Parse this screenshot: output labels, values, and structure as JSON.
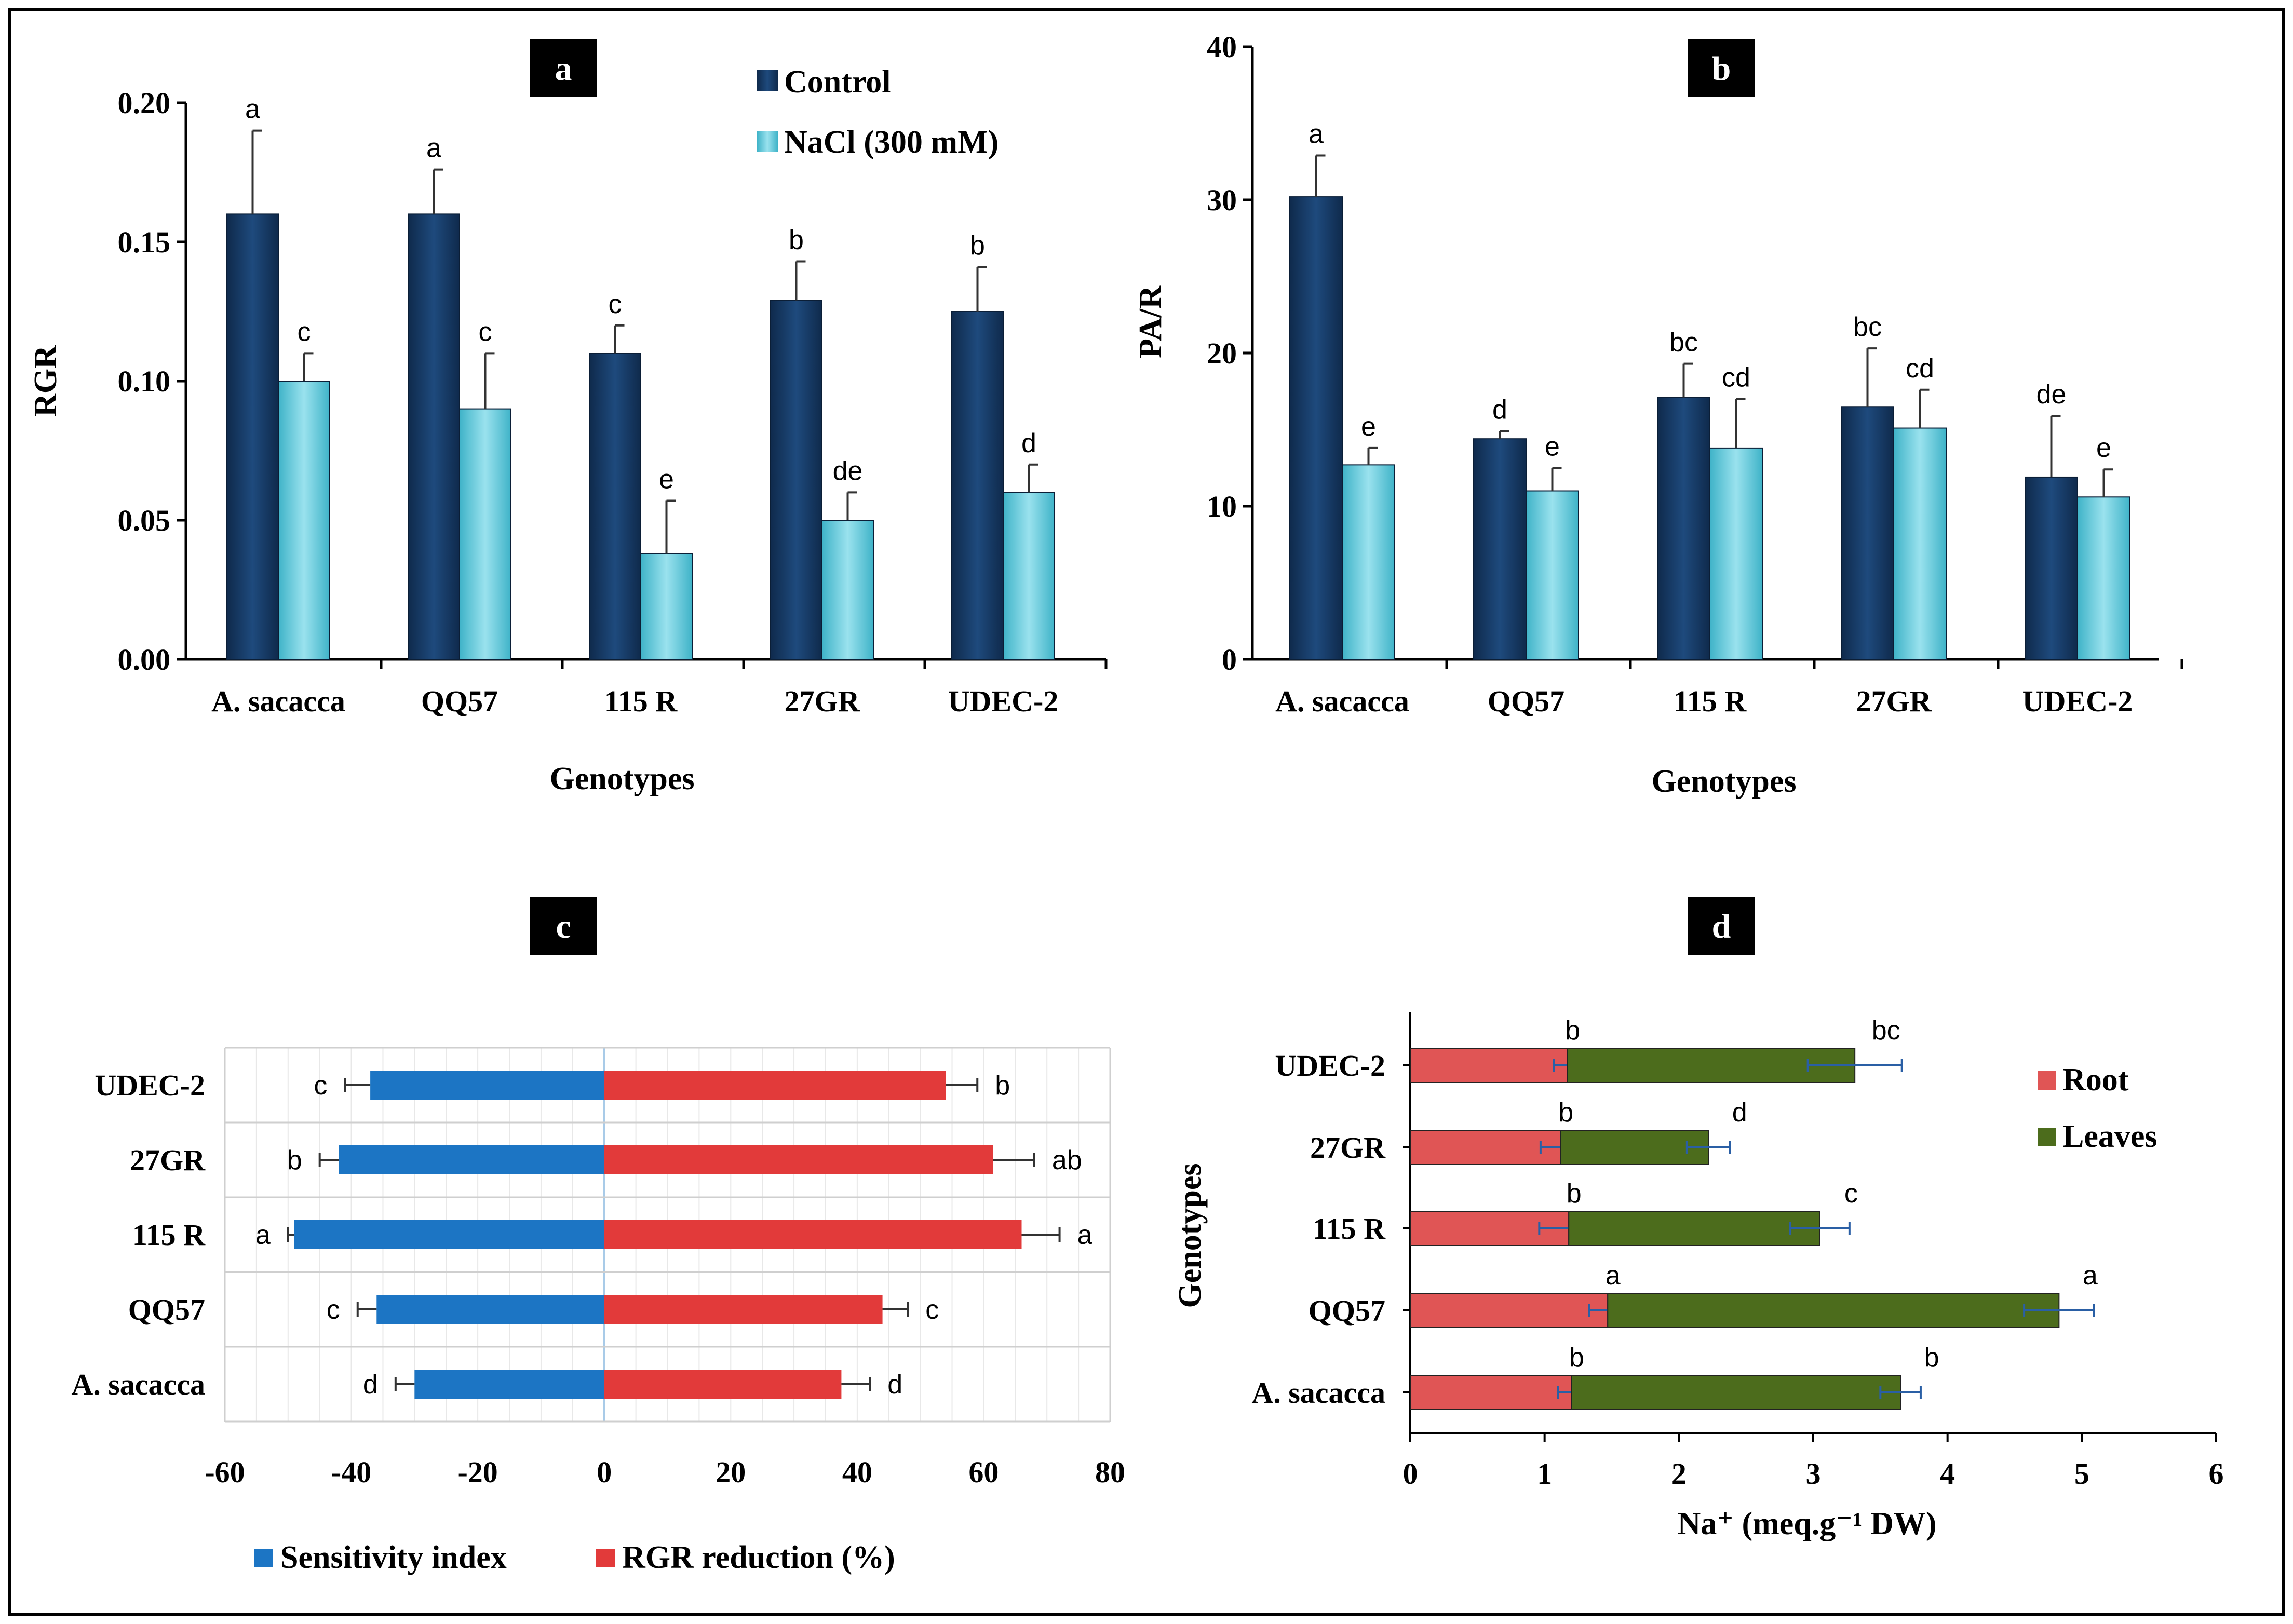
{
  "chart_data": [
    {
      "panel": "a",
      "type": "bar",
      "title": "a",
      "xlabel": "Genotypes",
      "ylabel": "RGR",
      "categories": [
        "A. sacacca",
        "QQ57",
        "115 R",
        "27GR",
        "UDEC-2"
      ],
      "ylim": [
        0,
        0.2
      ],
      "yticks": [
        "0.00",
        "0.05",
        "0.10",
        "0.15",
        "0.20"
      ],
      "series": [
        {
          "name": "Control",
          "color": "#163a64",
          "values": [
            0.16,
            0.16,
            0.11,
            0.129,
            0.125
          ],
          "errors": [
            0.03,
            0.016,
            0.01,
            0.014,
            0.016
          ],
          "letters": [
            "a",
            "a",
            "c",
            "b",
            "b"
          ]
        },
        {
          "name": "NaCl (300 mM)",
          "color": "#5ec6d8",
          "values": [
            0.1,
            0.09,
            0.038,
            0.05,
            0.06
          ],
          "errors": [
            0.01,
            0.02,
            0.019,
            0.01,
            0.01
          ],
          "letters": [
            "c",
            "c",
            "e",
            "de",
            "d"
          ]
        }
      ],
      "legend_position": "top-right"
    },
    {
      "panel": "b",
      "type": "bar",
      "title": "b",
      "xlabel": "Genotypes",
      "ylabel": "PA/R",
      "categories": [
        "A. sacacca",
        "QQ57",
        "115 R",
        "27GR",
        "UDEC-2"
      ],
      "ylim": [
        0,
        40
      ],
      "yticks": [
        "0",
        "10",
        "20",
        "30",
        "40"
      ],
      "series": [
        {
          "name": "Control",
          "color": "#163a64",
          "values": [
            30.2,
            14.4,
            17.1,
            16.5,
            11.9
          ],
          "errors": [
            2.7,
            0.5,
            2.2,
            3.8,
            4.0
          ],
          "letters": [
            "a",
            "d",
            "bc",
            "bc",
            "de"
          ]
        },
        {
          "name": "NaCl (300 mM)",
          "color": "#5ec6d8",
          "values": [
            12.7,
            11.0,
            13.8,
            15.1,
            10.6
          ],
          "errors": [
            1.1,
            1.5,
            3.2,
            2.5,
            1.8
          ],
          "letters": [
            "e",
            "e",
            "cd",
            "cd",
            "e"
          ]
        }
      ]
    },
    {
      "panel": "c",
      "type": "bar",
      "orientation": "horizontal",
      "title": "c",
      "categories": [
        "A. sacacca",
        "QQ57",
        "115 R",
        "27GR",
        "UDEC-2"
      ],
      "xlim": [
        -60,
        80
      ],
      "xticks": [
        "-60",
        "-40",
        "-20",
        "0",
        "20",
        "40",
        "60",
        "80"
      ],
      "series": [
        {
          "name": "Sensitivity index",
          "color": "#1c75c4",
          "values": [
            -30,
            -36,
            -49,
            -42,
            -37
          ],
          "errors": [
            3,
            3,
            1,
            3,
            4
          ],
          "letters": [
            "d",
            "c",
            "a",
            "b",
            "c"
          ]
        },
        {
          "name": "RGR reduction (%)",
          "color": "#e23a3a",
          "values": [
            37.5,
            44,
            66,
            61.5,
            54
          ],
          "errors": [
            4.5,
            4,
            6,
            6.5,
            5
          ],
          "letters": [
            "d",
            "c",
            "a",
            "ab",
            "b"
          ]
        }
      ],
      "legend_position": "bottom"
    },
    {
      "panel": "d",
      "type": "bar",
      "orientation": "horizontal",
      "stacked": true,
      "title": "d",
      "xlabel": "Na⁺ (meq.g⁻¹ DW)",
      "ylabel": "Genotypes",
      "categories": [
        "A. sacacca",
        "QQ57",
        "115 R",
        "27GR",
        "UDEC-2"
      ],
      "xlim": [
        0,
        6
      ],
      "xticks": [
        "0",
        "1",
        "2",
        "3",
        "4",
        "5",
        "6"
      ],
      "series": [
        {
          "name": "Root",
          "color": "#e05555",
          "values": [
            1.2,
            1.47,
            1.18,
            1.12,
            1.17
          ],
          "errors": [
            0.1,
            0.14,
            0.22,
            0.15,
            0.1
          ],
          "letters": [
            "b",
            "a",
            "b",
            "b",
            "b"
          ]
        },
        {
          "name": "Leaves",
          "color": "#4c6c1c",
          "values": [
            2.45,
            3.36,
            1.87,
            1.1,
            2.14
          ],
          "errors": [
            0.15,
            0.26,
            0.22,
            0.16,
            0.35
          ],
          "letters": [
            "b",
            "a",
            "c",
            "d",
            "bc"
          ]
        }
      ],
      "legend_position": "top-right"
    }
  ]
}
